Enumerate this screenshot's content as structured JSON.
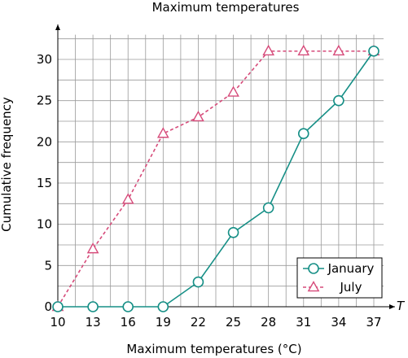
{
  "chart_data": {
    "type": "line",
    "title": "Maximum temperatures",
    "xlabel": "Maximum temperatures (°C)",
    "ylabel": "Cumulative frequency",
    "axis_var": "T",
    "x": [
      10,
      13,
      16,
      19,
      22,
      25,
      28,
      31,
      34,
      37
    ],
    "xticks": [
      10,
      13,
      16,
      19,
      22,
      25,
      28,
      31,
      34,
      37
    ],
    "yticks": [
      0,
      5,
      10,
      15,
      20,
      25,
      30
    ],
    "xlim": [
      10,
      37
    ],
    "ylim": [
      0,
      33
    ],
    "grid": true,
    "legend_position": "bottom-right",
    "series": [
      {
        "name": "January",
        "color": "#168f86",
        "marker": "circle",
        "line_style": "solid",
        "values": [
          0,
          0,
          0,
          0,
          3,
          9,
          12,
          21,
          25,
          31
        ]
      },
      {
        "name": "July",
        "color": "#d64b7a",
        "marker": "triangle",
        "line_style": "dashed",
        "values": [
          0,
          7,
          13,
          21,
          23,
          26,
          31,
          31,
          31,
          31
        ]
      }
    ]
  }
}
